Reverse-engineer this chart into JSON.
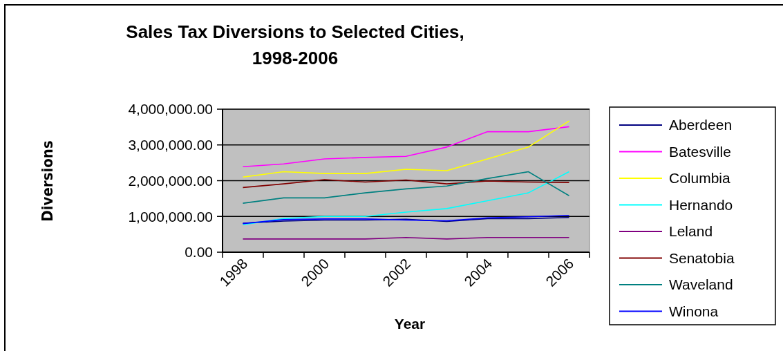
{
  "chart_data": {
    "type": "line",
    "title": "Sales Tax Diversions to Selected Cities, 1998-2006",
    "xlabel": "Year",
    "ylabel": "Diversions",
    "categories": [
      "1998",
      null,
      "2000",
      null,
      "2002",
      null,
      "2004",
      null,
      "2006"
    ],
    "ylim": [
      0,
      4000000
    ],
    "yticks": [
      {
        "value": 0,
        "label": "0.00"
      },
      {
        "value": 1000000,
        "label": "1,000,000.00"
      },
      {
        "value": 2000000,
        "label": "2,000,000.00"
      },
      {
        "value": 3000000,
        "label": "3,000,000.00"
      },
      {
        "value": 4000000,
        "label": "4,000,000.00"
      }
    ],
    "grid": "y",
    "legend": "right",
    "marker": "none",
    "line_style": "solid",
    "series": [
      {
        "name": "Aberdeen",
        "color": "#000080",
        "values": [
          810000,
          870000,
          900000,
          900000,
          920000,
          860000,
          940000,
          940000,
          970000
        ]
      },
      {
        "name": "Batesville",
        "color": "#ff00ff",
        "values": [
          2390000,
          2470000,
          2610000,
          2650000,
          2680000,
          2940000,
          3370000,
          3370000,
          3510000
        ]
      },
      {
        "name": "Columbia",
        "color": "#ffff00",
        "values": [
          2100000,
          2250000,
          2200000,
          2200000,
          2320000,
          2280000,
          2610000,
          2940000,
          3670000
        ]
      },
      {
        "name": "Hernando",
        "color": "#00ffff",
        "values": [
          770000,
          940000,
          1000000,
          1000000,
          1120000,
          1220000,
          1440000,
          1660000,
          2250000
        ]
      },
      {
        "name": "Leland",
        "color": "#800080",
        "values": [
          370000,
          370000,
          370000,
          370000,
          410000,
          370000,
          410000,
          410000,
          410000
        ]
      },
      {
        "name": "Senatobia",
        "color": "#800000",
        "values": [
          1810000,
          1910000,
          2030000,
          1960000,
          2020000,
          1910000,
          1990000,
          1960000,
          1950000
        ]
      },
      {
        "name": "Waveland",
        "color": "#008080",
        "values": [
          1370000,
          1520000,
          1520000,
          1660000,
          1770000,
          1850000,
          2060000,
          2250000,
          1580000
        ]
      },
      {
        "name": "Winona",
        "color": "#0000ff",
        "values": [
          800000,
          910000,
          930000,
          930000,
          900000,
          880000,
          960000,
          990000,
          1030000
        ]
      }
    ]
  }
}
